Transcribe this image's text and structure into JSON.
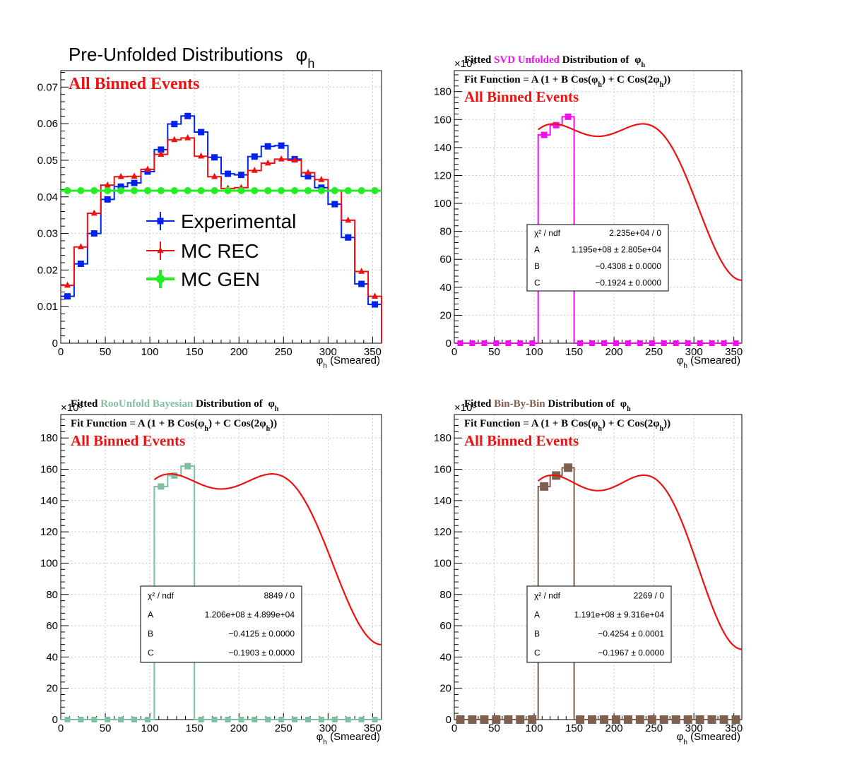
{
  "chart_data": [
    {
      "type": "line",
      "title": "Pre-Unfolded Distributions",
      "title_symbol": "φ",
      "title_subscript": "h",
      "annotation": "All Binned Events",
      "xlabel": "(Smeared)",
      "xlabel_symbol": "φ",
      "xlabel_subscript": "h",
      "xlim": [
        0,
        360
      ],
      "ylim": [
        0,
        0.0745
      ],
      "x_ticks": [
        "0",
        "50",
        "100",
        "150",
        "200",
        "250",
        "300",
        "350"
      ],
      "y_ticks": [
        "0",
        "0.01",
        "0.02",
        "0.03",
        "0.04",
        "0.05",
        "0.06",
        "0.07"
      ],
      "grid": true,
      "legend_position": "center",
      "bin_edges": [
        0,
        15,
        30,
        45,
        60,
        75,
        90,
        105,
        120,
        135,
        150,
        165,
        180,
        195,
        210,
        225,
        240,
        255,
        270,
        285,
        300,
        315,
        330,
        345,
        360
      ],
      "series": [
        {
          "name": "Experimental",
          "color": "#0022ee",
          "marker": "square",
          "values": [
            0.0128,
            0.0217,
            0.03,
            0.0393,
            0.0428,
            0.0438,
            0.0469,
            0.0529,
            0.0599,
            0.0621,
            0.0577,
            0.0508,
            0.0463,
            0.046,
            0.051,
            0.0538,
            0.054,
            0.0503,
            0.0456,
            0.0425,
            0.038,
            0.0289,
            0.0162,
            0.0106
          ]
        },
        {
          "name": "MC REC",
          "color": "#ee1111",
          "marker": "triangle",
          "values": [
            0.0158,
            0.0263,
            0.0355,
            0.0432,
            0.0455,
            0.0456,
            0.0475,
            0.0516,
            0.0556,
            0.0561,
            0.0511,
            0.0455,
            0.0423,
            0.0425,
            0.0472,
            0.0492,
            0.0503,
            0.05,
            0.0466,
            0.0447,
            0.0418,
            0.0336,
            0.0196,
            0.0128
          ]
        },
        {
          "name": "MC GEN",
          "color": "#22ee22",
          "marker": "circle",
          "values": [
            0.0417,
            0.0417,
            0.0417,
            0.0417,
            0.0417,
            0.0417,
            0.0417,
            0.0417,
            0.0417,
            0.0417,
            0.0417,
            0.0417,
            0.0417,
            0.0417,
            0.0417,
            0.0417,
            0.0417,
            0.0417,
            0.0417,
            0.0417,
            0.0417,
            0.0417,
            0.0417,
            0.0417
          ]
        }
      ]
    },
    {
      "type": "line",
      "title_parts": [
        {
          "text": "Fitted ",
          "color": "#000000"
        },
        {
          "text": "SVD Unfolded",
          "color": "#ee11ee"
        },
        {
          "text": " Distribution of ",
          "color": "#000000"
        }
      ],
      "title_symbol": "φ",
      "title_subscript": "h",
      "fit_function": "Fit Function = A (1 + B Cos(φh) + C Cos(2φh))",
      "annotation": "All Binned Events",
      "xlabel": "(Smeared)",
      "xlabel_symbol": "φ",
      "xlabel_subscript": "h",
      "exponent_label": "×10³",
      "xlim": [
        0,
        360
      ],
      "ylim": [
        0,
        195
      ],
      "x_ticks": [
        "0",
        "50",
        "100",
        "150",
        "200",
        "250",
        "300",
        "350"
      ],
      "y_ticks": [
        "0",
        "20",
        "40",
        "60",
        "80",
        "100",
        "120",
        "140",
        "160",
        "180"
      ],
      "grid": true,
      "hist_color": "#ee11ee",
      "marker": "square",
      "bin_edges": [
        0,
        15,
        30,
        45,
        60,
        75,
        90,
        105,
        120,
        135,
        150,
        165,
        180,
        195,
        210,
        225,
        240,
        255,
        270,
        285,
        300,
        315,
        330,
        345,
        360
      ],
      "values": [
        0,
        0,
        0,
        0,
        0,
        0,
        0,
        149,
        156,
        162,
        0,
        0,
        0,
        0,
        0,
        0,
        0,
        0,
        0,
        0,
        0,
        0,
        0,
        0
      ],
      "fit": {
        "A": 119.5,
        "B": -0.4308,
        "C": -0.1924,
        "x_start": 105,
        "x_end": 360,
        "color": "#ee1111"
      },
      "stats": [
        {
          "label": "χ² / ndf",
          "value": "2.235e+04 / 0"
        },
        {
          "label": "A",
          "value": "1.195e+08  ± 2.805e+04"
        },
        {
          "label": "B",
          "value": "−0.4308  ± 0.0000"
        },
        {
          "label": "C",
          "value": "−0.1924  ± 0.0000"
        }
      ]
    },
    {
      "type": "line",
      "title_parts": [
        {
          "text": "Fitted ",
          "color": "#000000"
        },
        {
          "text": "RooUnfold Bayesian",
          "color": "#7fbf9f"
        },
        {
          "text": " Distribution of ",
          "color": "#000000"
        }
      ],
      "title_symbol": "φ",
      "title_subscript": "h",
      "fit_function": "Fit Function = A (1 + B Cos(φh) + C Cos(2φh))",
      "annotation": "All Binned Events",
      "xlabel": "(Smeared)",
      "xlabel_symbol": "φ",
      "xlabel_subscript": "h",
      "exponent_label": "×10³",
      "xlim": [
        0,
        360
      ],
      "ylim": [
        0,
        195
      ],
      "x_ticks": [
        "0",
        "50",
        "100",
        "150",
        "200",
        "250",
        "300",
        "350"
      ],
      "y_ticks": [
        "0",
        "20",
        "40",
        "60",
        "80",
        "100",
        "120",
        "140",
        "160",
        "180"
      ],
      "grid": true,
      "hist_color": "#7fbf9f",
      "marker": "square",
      "bin_edges": [
        0,
        15,
        30,
        45,
        60,
        75,
        90,
        105,
        120,
        135,
        150,
        165,
        180,
        195,
        210,
        225,
        240,
        255,
        270,
        285,
        300,
        315,
        330,
        345,
        360
      ],
      "values": [
        0,
        0,
        0,
        0,
        0,
        0,
        0,
        149,
        156,
        162,
        0,
        0,
        0,
        0,
        0,
        0,
        0,
        0,
        0,
        0,
        0,
        0,
        0,
        0
      ],
      "fit": {
        "A": 120.6,
        "B": -0.4125,
        "C": -0.1903,
        "x_start": 105,
        "x_end": 360,
        "color": "#ee1111"
      },
      "stats": [
        {
          "label": "χ² / ndf",
          "value": "8849 / 0"
        },
        {
          "label": "A",
          "value": "1.206e+08 ± 4.899e+04"
        },
        {
          "label": "B",
          "value": "−0.4125 ± 0.0000"
        },
        {
          "label": "C",
          "value": "−0.1903 ± 0.0000"
        }
      ]
    },
    {
      "type": "line",
      "title_parts": [
        {
          "text": "Fitted ",
          "color": "#000000"
        },
        {
          "text": "Bin-By-Bin",
          "color": "#7f5f4f"
        },
        {
          "text": " Distribution of ",
          "color": "#000000"
        }
      ],
      "title_symbol": "φ",
      "title_subscript": "h",
      "fit_function": "Fit Function = A (1 + B Cos(φh) + C Cos(2φh))",
      "annotation": "All Binned Events",
      "xlabel": "(Smeared)",
      "xlabel_symbol": "φ",
      "xlabel_subscript": "h",
      "exponent_label": "×10³",
      "xlim": [
        0,
        360
      ],
      "ylim": [
        0,
        195
      ],
      "x_ticks": [
        "0",
        "50",
        "100",
        "150",
        "200",
        "250",
        "300",
        "350"
      ],
      "y_ticks": [
        "0",
        "20",
        "40",
        "60",
        "80",
        "100",
        "120",
        "140",
        "160",
        "180"
      ],
      "grid": true,
      "hist_color": "#7f5f4f",
      "marker": "square",
      "bin_edges": [
        0,
        15,
        30,
        45,
        60,
        75,
        90,
        105,
        120,
        135,
        150,
        165,
        180,
        195,
        210,
        225,
        240,
        255,
        270,
        285,
        300,
        315,
        330,
        345,
        360
      ],
      "values": [
        0,
        0,
        0,
        0,
        0,
        0,
        0,
        149,
        156,
        161,
        0,
        0,
        0,
        0,
        0,
        0,
        0,
        0,
        0,
        0,
        0,
        0,
        0,
        0
      ],
      "fit": {
        "A": 119.1,
        "B": -0.4254,
        "C": -0.1967,
        "x_start": 105,
        "x_end": 360,
        "color": "#ee1111"
      },
      "stats": [
        {
          "label": "χ² / ndf",
          "value": "2269 / 0"
        },
        {
          "label": "A",
          "value": "1.191e+08 ± 9.316e+04"
        },
        {
          "label": "B",
          "value": "−0.4254 ± 0.0001"
        },
        {
          "label": "C",
          "value": "−0.1967 ± 0.0000"
        }
      ]
    }
  ]
}
